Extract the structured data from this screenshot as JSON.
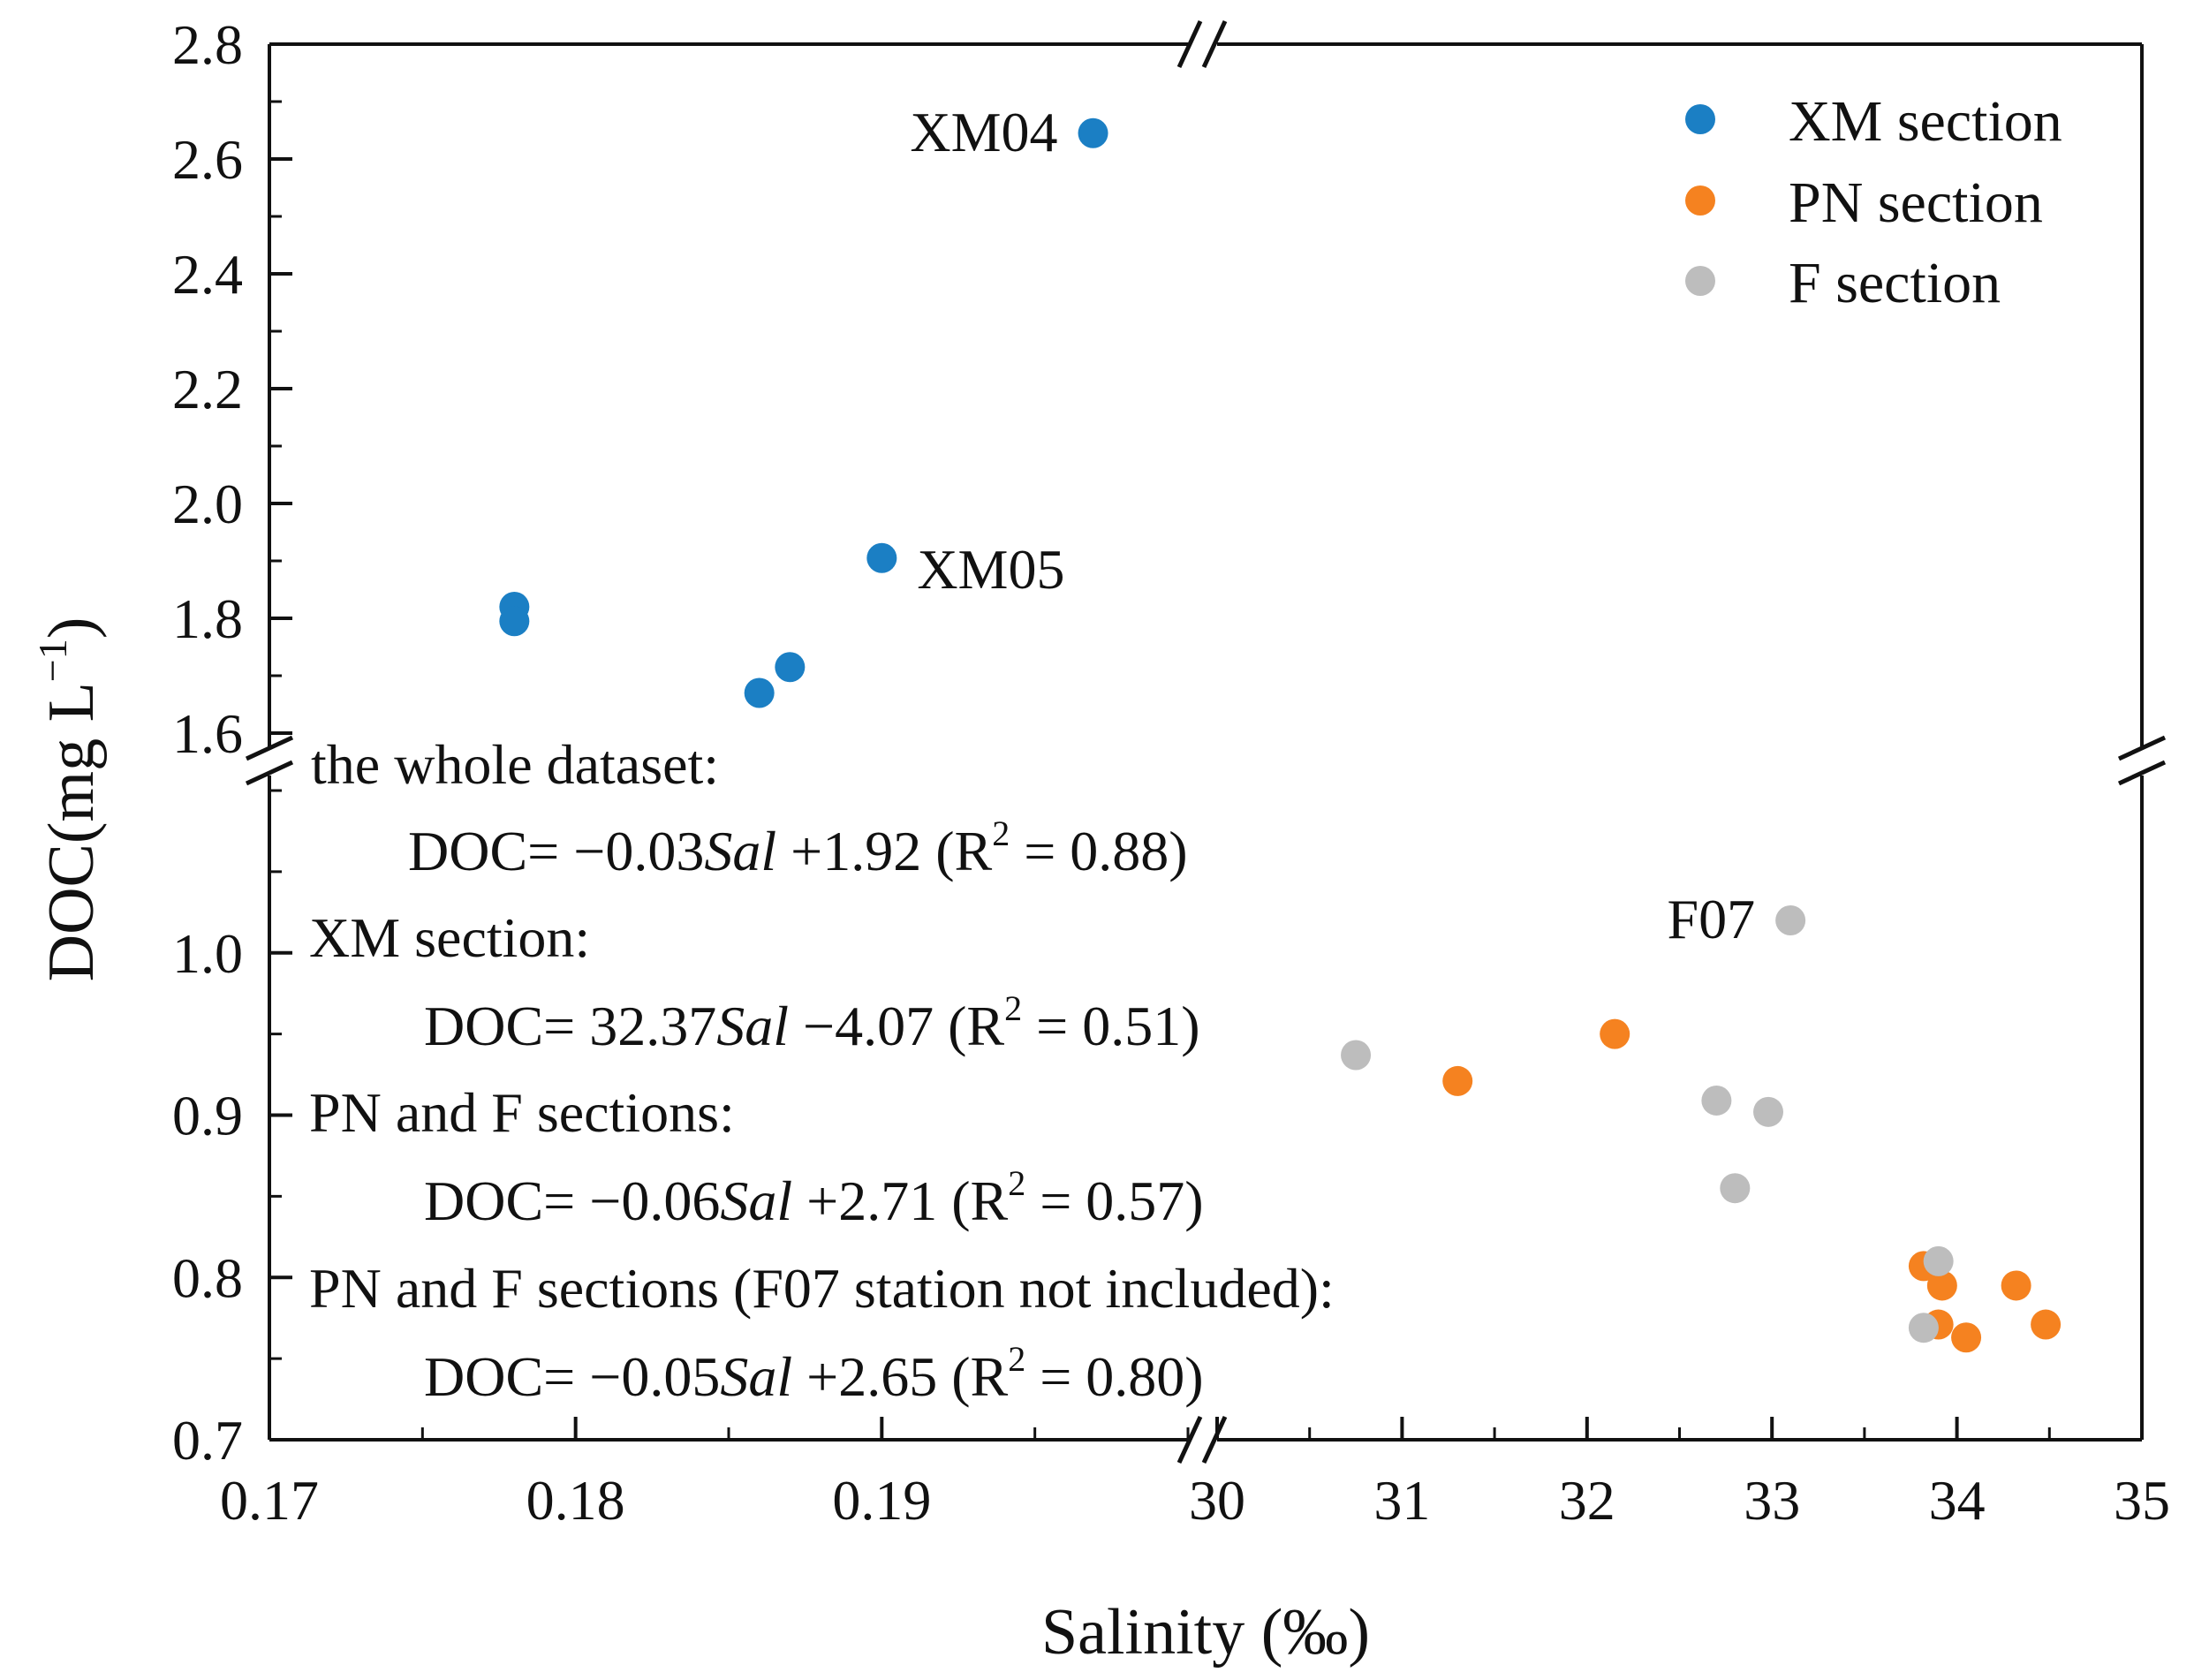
{
  "chart_data": {
    "type": "scatter",
    "title": "",
    "xlabel": "Salinity (‰)",
    "ylabel": "DOC(mg L",
    "ylabel_superscript": "−1",
    "ylabel_suffix": ")",
    "x_segments": [
      {
        "range": [
          0.17,
          0.2
        ],
        "ticks": [
          0.17,
          0.18,
          0.19
        ],
        "tick_labels": [
          "0.17",
          "0.18",
          "0.19"
        ]
      },
      {
        "range": [
          30,
          35
        ],
        "ticks": [
          30,
          31,
          32,
          33,
          34,
          35
        ],
        "tick_labels": [
          "30",
          "31",
          "32",
          "33",
          "34",
          "35"
        ]
      }
    ],
    "y_segments": [
      {
        "range": [
          0.7,
          1.1
        ],
        "ticks": [
          0.7,
          0.8,
          0.9,
          1.0
        ],
        "tick_labels": [
          "0.7",
          "0.8",
          "0.9",
          "1.0"
        ]
      },
      {
        "range": [
          1.6,
          2.8
        ],
        "ticks": [
          1.6,
          1.8,
          2.0,
          2.2,
          2.4,
          2.6,
          2.8
        ],
        "tick_labels": [
          "1.6",
          "1.8",
          "2.0",
          "2.2",
          "2.4",
          "2.6",
          "2.8"
        ]
      }
    ],
    "axis_breaks": {
      "x": "between 0.2 and 30",
      "y": "between 1.1 and 1.6"
    },
    "legend": {
      "placement": "top-right"
    },
    "series": [
      {
        "name": "XM section",
        "color": "#1b7fc4",
        "points": [
          {
            "x": 0.178,
            "y": 1.82
          },
          {
            "x": 0.178,
            "y": 1.795
          },
          {
            "x": 0.186,
            "y": 1.67
          },
          {
            "x": 0.187,
            "y": 1.715
          },
          {
            "x": 0.19,
            "y": 1.905,
            "label": "XM05"
          },
          {
            "x": 0.1969,
            "y": 2.645,
            "label": "XM04"
          }
        ]
      },
      {
        "name": "PN section",
        "color": "#f58220",
        "points": [
          {
            "x": 31.3,
            "y": 0.921
          },
          {
            "x": 32.15,
            "y": 0.95
          },
          {
            "x": 33.82,
            "y": 0.807
          },
          {
            "x": 33.92,
            "y": 0.795
          },
          {
            "x": 33.9,
            "y": 0.771
          },
          {
            "x": 34.05,
            "y": 0.763
          },
          {
            "x": 34.32,
            "y": 0.795
          },
          {
            "x": 34.48,
            "y": 0.771
          }
        ]
      },
      {
        "name": "F section",
        "color": "#bdbdbd",
        "points": [
          {
            "x": 30.75,
            "y": 0.937
          },
          {
            "x": 32.7,
            "y": 0.909
          },
          {
            "x": 32.98,
            "y": 0.902
          },
          {
            "x": 32.8,
            "y": 0.855
          },
          {
            "x": 33.9,
            "y": 0.81
          },
          {
            "x": 33.82,
            "y": 0.769
          },
          {
            "x": 33.1,
            "y": 1.02,
            "label": "F07"
          }
        ]
      }
    ],
    "annotations": [
      {
        "text": "the whole dataset:"
      },
      {
        "parts": [
          {
            "t": "DOC= −0.03"
          },
          {
            "t": "Sal",
            "i": true
          },
          {
            "t": " +1.92 (R"
          },
          {
            "t": "2",
            "sup": true
          },
          {
            "t": " = 0.88)"
          }
        ]
      },
      {
        "text": "XM section:"
      },
      {
        "parts": [
          {
            "t": "DOC= 32.37"
          },
          {
            "t": "Sal",
            "i": true
          },
          {
            "t": " −4.07 (R"
          },
          {
            "t": "2",
            "sup": true
          },
          {
            "t": " = 0.51)"
          }
        ]
      },
      {
        "text": "PN and F sections:"
      },
      {
        "parts": [
          {
            "t": "DOC= −0.06"
          },
          {
            "t": "Sal",
            "i": true
          },
          {
            "t": " +2.71 (R"
          },
          {
            "t": "2",
            "sup": true
          },
          {
            "t": " = 0.57)"
          }
        ]
      },
      {
        "text": "PN and F sections  (F07 station not included):"
      },
      {
        "parts": [
          {
            "t": "DOC= −0.05"
          },
          {
            "t": "Sal",
            "i": true
          },
          {
            "t": " +2.65 (R"
          },
          {
            "t": "2",
            "sup": true
          },
          {
            "t": " = 0.80)"
          }
        ]
      }
    ]
  }
}
